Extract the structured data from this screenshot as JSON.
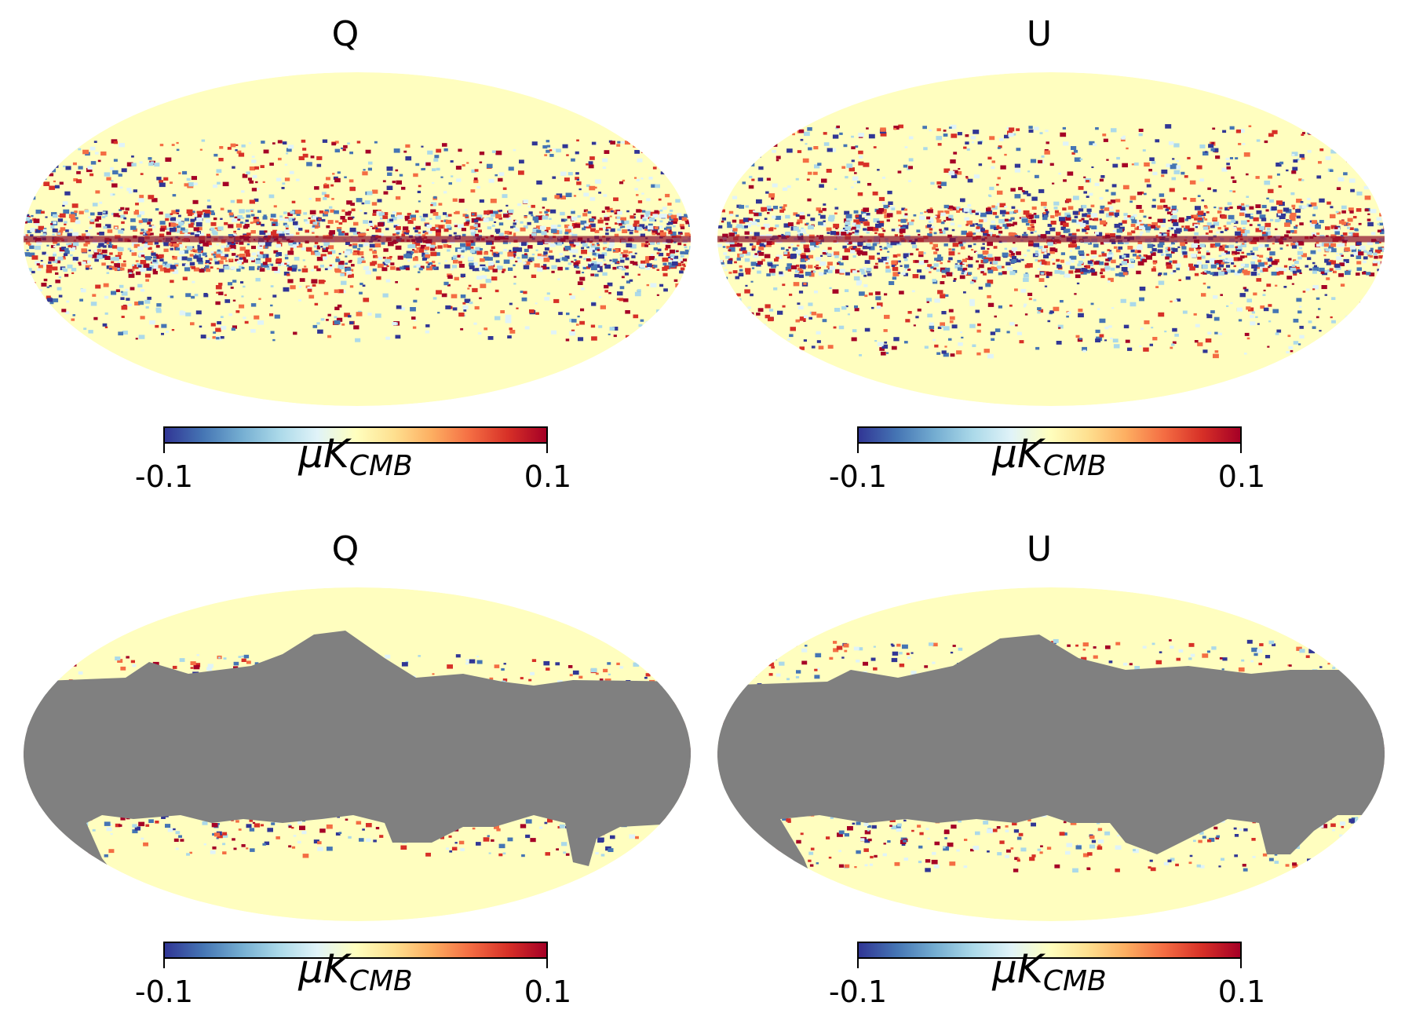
{
  "chart_data": [
    {
      "type": "heatmap",
      "projection": "mollweide",
      "title": "Q",
      "masked": false,
      "colormap": "RdYlBu_r",
      "colorbar": {
        "min": -0.1,
        "max": 0.1,
        "tick_labels": [
          "-0.1",
          "0.1"
        ],
        "unit_main": "μK",
        "unit_sub": "CMB"
      }
    },
    {
      "type": "heatmap",
      "projection": "mollweide",
      "title": "U",
      "masked": false,
      "colormap": "RdYlBu_r",
      "colorbar": {
        "min": -0.1,
        "max": 0.1,
        "tick_labels": [
          "-0.1",
          "0.1"
        ],
        "unit_main": "μK",
        "unit_sub": "CMB"
      }
    },
    {
      "type": "heatmap",
      "projection": "mollweide",
      "title": "Q",
      "masked": true,
      "colormap": "RdYlBu_r",
      "colorbar": {
        "min": -0.1,
        "max": 0.1,
        "tick_labels": [
          "-0.1",
          "0.1"
        ],
        "unit_main": "μK",
        "unit_sub": "CMB"
      }
    },
    {
      "type": "heatmap",
      "projection": "mollweide",
      "title": "U",
      "masked": true,
      "colormap": "RdYlBu_r",
      "colorbar": {
        "min": -0.1,
        "max": 0.1,
        "tick_labels": [
          "-0.1",
          "0.1"
        ],
        "unit_main": "μK",
        "unit_sub": "CMB"
      }
    }
  ],
  "colors": {
    "background": "#fffebf",
    "mask": "#808080",
    "low": "#313695",
    "high": "#a50026"
  }
}
